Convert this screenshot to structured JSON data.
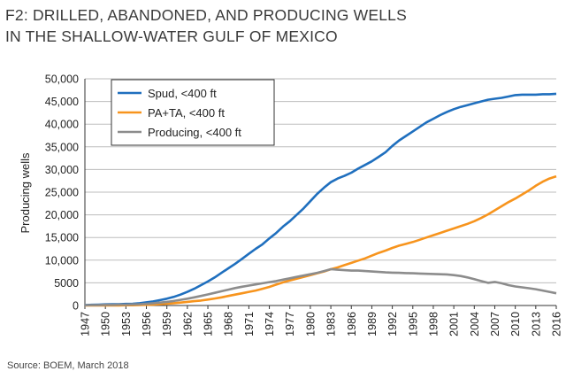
{
  "chart_data": {
    "type": "line",
    "title": [
      "F2: DRILLED, ABANDONED, AND PRODUCING WELLS",
      "IN THE SHALLOW-WATER GULF OF MEXICO"
    ],
    "xlabel": "",
    "ylabel": "Producing wells",
    "xlim": [
      1947,
      2016
    ],
    "ylim": [
      0,
      50000
    ],
    "x_ticks": [
      "1947",
      "1950",
      "1953",
      "1956",
      "1959",
      "1962",
      "1965",
      "1968",
      "1971",
      "1974",
      "1977",
      "1980",
      "1983",
      "1986",
      "1989",
      "1992",
      "1995",
      "1998",
      "2001",
      "2004",
      "2007",
      "2010",
      "2013",
      "2016"
    ],
    "y_ticks": [
      "0",
      "5000",
      "10,000",
      "15,000",
      "20,000",
      "25,000",
      "30,000",
      "35,000",
      "40,000",
      "45,000",
      "50,000"
    ],
    "x": [
      1947,
      1948,
      1949,
      1950,
      1951,
      1952,
      1953,
      1954,
      1955,
      1956,
      1957,
      1958,
      1959,
      1960,
      1961,
      1962,
      1963,
      1964,
      1965,
      1966,
      1967,
      1968,
      1969,
      1970,
      1971,
      1972,
      1973,
      1974,
      1975,
      1976,
      1977,
      1978,
      1979,
      1980,
      1981,
      1982,
      1983,
      1984,
      1985,
      1986,
      1987,
      1988,
      1989,
      1990,
      1991,
      1992,
      1993,
      1994,
      1995,
      1996,
      1997,
      1998,
      1999,
      2000,
      2001,
      2002,
      2003,
      2004,
      2005,
      2006,
      2007,
      2008,
      2009,
      2010,
      2011,
      2012,
      2013,
      2014,
      2015,
      2016
    ],
    "series": [
      {
        "name": "Spud, <400 ft",
        "color": "#1f6fbe",
        "values": [
          100,
          150,
          200,
          250,
          300,
          300,
          350,
          400,
          500,
          700,
          900,
          1200,
          1500,
          1900,
          2400,
          3000,
          3700,
          4500,
          5300,
          6200,
          7200,
          8200,
          9200,
          10300,
          11400,
          12500,
          13500,
          14800,
          16000,
          17400,
          18600,
          20000,
          21400,
          23000,
          24600,
          26000,
          27200,
          28000,
          28600,
          29300,
          30200,
          31000,
          31800,
          32800,
          33800,
          35200,
          36400,
          37400,
          38400,
          39400,
          40400,
          41200,
          42000,
          42700,
          43300,
          43800,
          44200,
          44600,
          45000,
          45400,
          45600,
          45800,
          46100,
          46400,
          46500,
          46500,
          46500,
          46600,
          46600,
          46700
        ]
      },
      {
        "name": "PA+TA, <400 ft",
        "color": "#f7941d",
        "values": [
          0,
          0,
          0,
          0,
          0,
          0,
          50,
          50,
          100,
          150,
          200,
          300,
          400,
          500,
          650,
          800,
          950,
          1100,
          1300,
          1550,
          1800,
          2100,
          2400,
          2700,
          3000,
          3300,
          3700,
          4100,
          4600,
          5100,
          5500,
          5900,
          6300,
          6700,
          7100,
          7500,
          8000,
          8400,
          8900,
          9400,
          9900,
          10400,
          11000,
          11600,
          12100,
          12700,
          13200,
          13600,
          14000,
          14500,
          15000,
          15500,
          16000,
          16500,
          17000,
          17500,
          18000,
          18600,
          19300,
          20100,
          21000,
          21900,
          22800,
          23600,
          24500,
          25400,
          26400,
          27300,
          28000,
          28500
        ]
      },
      {
        "name": "Producing, <400 ft",
        "color": "#8c8c8c",
        "values": [
          50,
          100,
          100,
          150,
          150,
          200,
          200,
          250,
          300,
          400,
          500,
          650,
          800,
          1000,
          1250,
          1500,
          1800,
          2100,
          2450,
          2800,
          3150,
          3500,
          3850,
          4150,
          4400,
          4650,
          4900,
          5150,
          5400,
          5700,
          6000,
          6300,
          6600,
          6900,
          7200,
          7600,
          8000,
          7900,
          7800,
          7700,
          7700,
          7600,
          7500,
          7400,
          7300,
          7250,
          7200,
          7150,
          7100,
          7050,
          7000,
          6950,
          6900,
          6850,
          6700,
          6500,
          6200,
          5800,
          5400,
          5000,
          5200,
          4900,
          4500,
          4200,
          4000,
          3800,
          3600,
          3300,
          3000,
          2700
        ]
      }
    ]
  },
  "source": "Source: BOEM, March 2018"
}
